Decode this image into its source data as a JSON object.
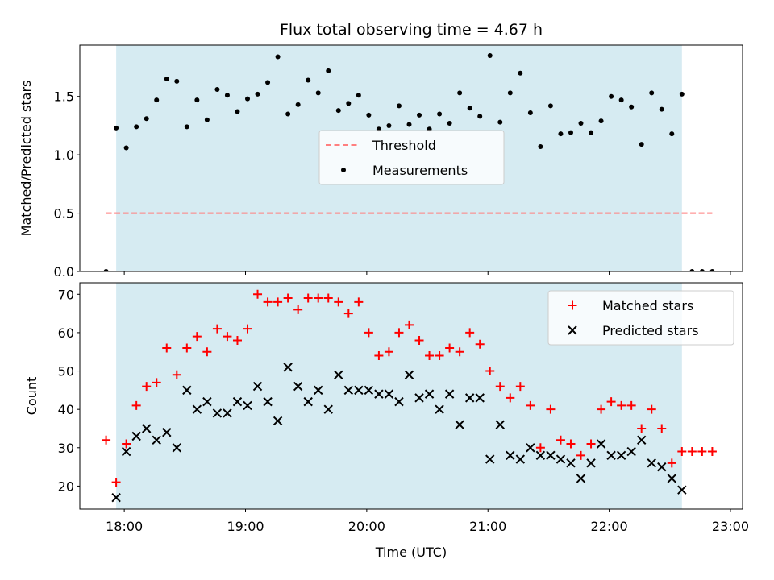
{
  "chart_data": [
    {
      "type": "scatter",
      "title": "Flux total observing time = 4.67 h",
      "ylabel": "Matched/Predicted stars",
      "xlabel": "",
      "xlim": [
        "17:38",
        "23:06"
      ],
      "ylim": [
        0,
        1.94
      ],
      "yticks": [
        "0.0",
        "0.5",
        "1.0",
        "1.5"
      ],
      "grid": false,
      "legend_placement": "center",
      "observing_window": [
        "17:56",
        "22:36"
      ],
      "observing_window_color": "#add8e6",
      "series": [
        {
          "name": "Threshold",
          "style": "dashed-line",
          "color": "#ff7f7f",
          "x": [
            "17:51",
            "22:51"
          ],
          "y": [
            0.5,
            0.5
          ]
        },
        {
          "name": "Measurements",
          "style": "dot",
          "color": "#000000",
          "x": [
            "17:51",
            "17:56",
            "18:01",
            "18:06",
            "18:11",
            "18:16",
            "18:21",
            "18:26",
            "18:31",
            "18:36",
            "18:41",
            "18:46",
            "18:51",
            "18:56",
            "19:01",
            "19:06",
            "19:11",
            "19:16",
            "19:21",
            "19:26",
            "19:31",
            "19:36",
            "19:41",
            "19:46",
            "19:51",
            "19:56",
            "20:01",
            "20:06",
            "20:11",
            "20:16",
            "20:21",
            "20:26",
            "20:31",
            "20:36",
            "20:41",
            "20:46",
            "20:51",
            "20:56",
            "21:01",
            "21:06",
            "21:11",
            "21:16",
            "21:21",
            "21:26",
            "21:31",
            "21:36",
            "21:41",
            "21:46",
            "21:51",
            "21:56",
            "22:01",
            "22:06",
            "22:11",
            "22:16",
            "22:21",
            "22:26",
            "22:31",
            "22:36",
            "22:41",
            "22:46",
            "22:51"
          ],
          "y": [
            0.0,
            1.23,
            1.06,
            1.24,
            1.31,
            1.47,
            1.65,
            1.63,
            1.24,
            1.47,
            1.3,
            1.56,
            1.51,
            1.37,
            1.48,
            1.52,
            1.62,
            1.84,
            1.35,
            1.43,
            1.64,
            1.53,
            1.72,
            1.38,
            1.44,
            1.51,
            1.34,
            1.22,
            1.25,
            1.42,
            1.26,
            1.34,
            1.22,
            1.35,
            1.27,
            1.53,
            1.4,
            1.33,
            1.85,
            1.28,
            1.53,
            1.7,
            1.36,
            1.07,
            1.42,
            1.18,
            1.19,
            1.27,
            1.19,
            1.29,
            1.5,
            1.47,
            1.41,
            1.09,
            1.53,
            1.39,
            1.18,
            1.52,
            0.0,
            0.0,
            0.0
          ]
        }
      ]
    },
    {
      "type": "scatter",
      "title": "",
      "ylabel": "Count",
      "xlabel": "Time (UTC)",
      "xlim": [
        "17:38",
        "23:06"
      ],
      "ylim": [
        14,
        73
      ],
      "yticks": [
        "20",
        "30",
        "40",
        "50",
        "60",
        "70"
      ],
      "xticks": [
        "18:00",
        "19:00",
        "20:00",
        "21:00",
        "22:00",
        "23:00"
      ],
      "grid": false,
      "legend_placement": "upper right",
      "observing_window": [
        "17:56",
        "22:36"
      ],
      "observing_window_color": "#add8e6",
      "series": [
        {
          "name": "Matched stars",
          "marker": "+",
          "color": "#ff0000",
          "x": [
            "17:51",
            "17:56",
            "18:01",
            "18:06",
            "18:11",
            "18:16",
            "18:21",
            "18:26",
            "18:31",
            "18:36",
            "18:41",
            "18:46",
            "18:51",
            "18:56",
            "19:01",
            "19:06",
            "19:11",
            "19:16",
            "19:21",
            "19:26",
            "19:31",
            "19:36",
            "19:41",
            "19:46",
            "19:51",
            "19:56",
            "20:01",
            "20:06",
            "20:11",
            "20:16",
            "20:21",
            "20:26",
            "20:31",
            "20:36",
            "20:41",
            "20:46",
            "20:51",
            "20:56",
            "21:01",
            "21:06",
            "21:11",
            "21:16",
            "21:21",
            "21:26",
            "21:31",
            "21:36",
            "21:41",
            "21:46",
            "21:51",
            "21:56",
            "22:01",
            "22:06",
            "22:11",
            "22:16",
            "22:21",
            "22:26",
            "22:31",
            "22:36",
            "22:41",
            "22:46",
            "22:51"
          ],
          "y": [
            32,
            21,
            31,
            41,
            46,
            47,
            56,
            49,
            56,
            59,
            55,
            61,
            59,
            58,
            61,
            70,
            68,
            68,
            69,
            66,
            69,
            69,
            69,
            68,
            65,
            68,
            60,
            54,
            55,
            60,
            62,
            58,
            54,
            54,
            56,
            55,
            60,
            57,
            50,
            46,
            43,
            46,
            41,
            30,
            40,
            32,
            31,
            28,
            31,
            40,
            42,
            41,
            41,
            35,
            40,
            35,
            26,
            29,
            29,
            29,
            29
          ]
        },
        {
          "name": "Predicted stars",
          "marker": "x",
          "color": "#000000",
          "x": [
            "17:56",
            "18:01",
            "18:06",
            "18:11",
            "18:16",
            "18:21",
            "18:26",
            "18:31",
            "18:36",
            "18:41",
            "18:46",
            "18:51",
            "18:56",
            "19:01",
            "19:06",
            "19:11",
            "19:16",
            "19:21",
            "19:26",
            "19:31",
            "19:36",
            "19:41",
            "19:46",
            "19:51",
            "19:56",
            "20:01",
            "20:06",
            "20:11",
            "20:16",
            "20:21",
            "20:26",
            "20:31",
            "20:36",
            "20:41",
            "20:46",
            "20:51",
            "20:56",
            "21:01",
            "21:06",
            "21:11",
            "21:16",
            "21:21",
            "21:26",
            "21:31",
            "21:36",
            "21:41",
            "21:46",
            "21:51",
            "21:56",
            "22:01",
            "22:06",
            "22:11",
            "22:16",
            "22:21",
            "22:26",
            "22:31",
            "22:36"
          ],
          "y": [
            17,
            29,
            33,
            35,
            32,
            34,
            30,
            45,
            40,
            42,
            39,
            39,
            42,
            41,
            46,
            42,
            37,
            51,
            46,
            42,
            45,
            40,
            49,
            45,
            45,
            45,
            44,
            44,
            42,
            49,
            43,
            44,
            40,
            44,
            36,
            43,
            43,
            27,
            36,
            28,
            27,
            30,
            28,
            28,
            27,
            26,
            22,
            26,
            31,
            28,
            28,
            29,
            32,
            26,
            25,
            22,
            19
          ]
        }
      ]
    }
  ]
}
